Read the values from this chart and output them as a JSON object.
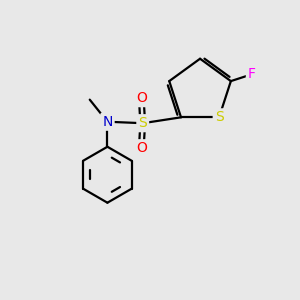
{
  "bg_color": "#e8e8e8",
  "atom_colors": {
    "C": "#000000",
    "N": "#0000cc",
    "O": "#ff0000",
    "S_sulfone": "#cccc00",
    "S_thiophene": "#cccc00",
    "F": "#ff00ff"
  },
  "bond_color": "#000000",
  "bond_width": 1.6,
  "figsize": [
    3.0,
    3.0
  ],
  "dpi": 100,
  "xlim": [
    0,
    10
  ],
  "ylim": [
    0,
    10
  ]
}
